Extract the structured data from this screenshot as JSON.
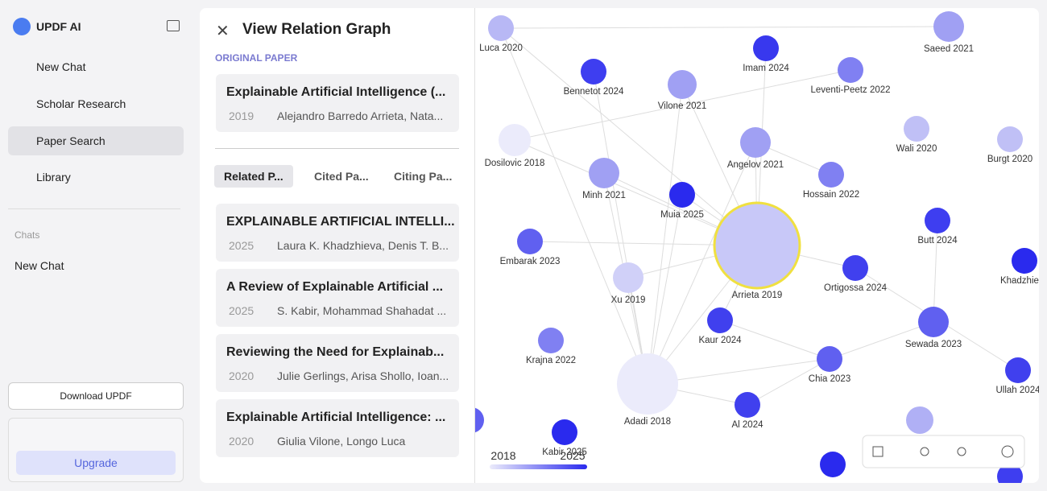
{
  "sidebar": {
    "brand": "UPDF AI",
    "nav": [
      "New Chat",
      "Scholar Research",
      "Paper Search",
      "Library"
    ],
    "chats_heading": "Chats",
    "chats": [
      "New Chat"
    ],
    "download": "Download UPDF",
    "upgrade": "Upgrade"
  },
  "panel": {
    "title": "View Relation Graph",
    "original_heading": "ORIGINAL PAPER",
    "original": {
      "title": "Explainable Artificial Intelligence (...",
      "year": "2019",
      "authors": "Alejandro Barredo Arrieta, Nata..."
    },
    "tabs": [
      "Related P...",
      "Cited Pa...",
      "Citing Pa..."
    ],
    "papers": [
      {
        "title": "EXPLAINABLE ARTIFICIAL INTELLI...",
        "year": "2025",
        "authors": "Laura K. Khadzhieva, Denis T. B..."
      },
      {
        "title": "A Review of Explainable Artificial ...",
        "year": "2025",
        "authors": "S. Kabir, Mohammad Shahadat ..."
      },
      {
        "title": "Reviewing the Need for Explainab...",
        "year": "2020",
        "authors": "Julie Gerlings, Arisa Shollo, Ioan..."
      },
      {
        "title": "Explainable Artificial Intelligence: ...",
        "year": "2020",
        "authors": "Giulia Vilone, Longo Luca"
      }
    ]
  },
  "graph": {
    "nodes": [
      {
        "label": "Luca 2020",
        "color": "#b8b8f5"
      },
      {
        "label": "Saeed 2021",
        "color": "#a0a0f3"
      },
      {
        "label": "Bennetot 2024",
        "color": "#3e3ef0"
      },
      {
        "label": "Imam 2024",
        "color": "#3838ee"
      },
      {
        "label": "Leventi-Peetz 2022",
        "color": "#8080f2"
      },
      {
        "label": "Vilone 2021",
        "color": "#a0a0f3"
      },
      {
        "label": "Dosilovic 2018",
        "color": "#ebebfb"
      },
      {
        "label": "Angelov 2021",
        "color": "#a0a0f3"
      },
      {
        "label": "Wali 2020",
        "color": "#c0c0f6"
      },
      {
        "label": "Burgt 2020",
        "color": "#c0c0f6"
      },
      {
        "label": "Minh 2021",
        "color": "#a0a0f3"
      },
      {
        "label": "Muia 2025",
        "color": "#2a2aee"
      },
      {
        "label": "Hossain 2022",
        "color": "#8080f2"
      },
      {
        "label": "Butt 2024",
        "color": "#3e3ef0"
      },
      {
        "label": "Embarak 2023",
        "color": "#6060f0"
      },
      {
        "label": "Arrieta 2019",
        "color": "#c8c8f8"
      },
      {
        "label": "Ortigossa 2024",
        "color": "#4040ee"
      },
      {
        "label": "Khadzhieva",
        "color": "#2a2aee"
      },
      {
        "label": "Xu 2019",
        "color": "#d0d0f8"
      },
      {
        "label": "Kaur 2024",
        "color": "#4040ee"
      },
      {
        "label": "Sewada 2023",
        "color": "#6060f0"
      },
      {
        "label": "Krajna 2022",
        "color": "#8080f2"
      },
      {
        "label": "Chia 2023",
        "color": "#6060f0"
      },
      {
        "label": "Ullah 2024",
        "color": "#4040ee"
      },
      {
        "label": "Adadi 2018",
        "color": "#ebebfb"
      },
      {
        "label": "Al 2024",
        "color": "#4040ee"
      },
      {
        "label": "Kabir 2025",
        "color": "#2a2aee"
      }
    ],
    "legend": [
      "2018",
      "2025"
    ]
  }
}
